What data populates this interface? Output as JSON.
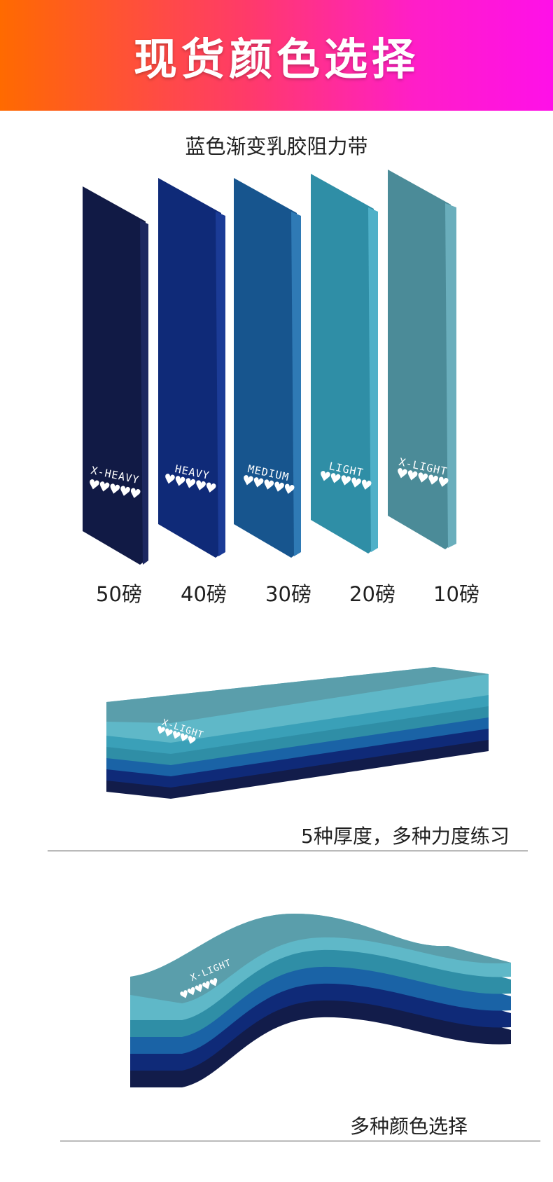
{
  "header": {
    "title": "现货颜色选择"
  },
  "product": {
    "subtitle": "蓝色渐变乳胶阻力带"
  },
  "bands": [
    {
      "label": "X-HEAVY",
      "hearts": "♥♥♥♥♥",
      "weight": "50磅",
      "color": "#111a45"
    },
    {
      "label": "HEAVY",
      "hearts": "♥♥♥♥♥",
      "weight": "40磅",
      "color": "#0f2a78"
    },
    {
      "label": "MEDIUM",
      "hearts": "♥♥♥♥♥",
      "weight": "30磅",
      "color": "#17558e"
    },
    {
      "label": "LIGHT",
      "hearts": "♥♥♥♥♥",
      "weight": "20磅",
      "color": "#2f8ea6"
    },
    {
      "label": "X-LIGHT",
      "hearts": "♥♥♥♥♥",
      "weight": "10磅",
      "color": "#4b8b98"
    }
  ],
  "stack_flat": {
    "band_label": "X-LIGHT",
    "hearts": "♥♥♥♥♥",
    "caption": "5种厚度，多种力度练习"
  },
  "stack_wave": {
    "band_label": "X-LIGHT",
    "hearts": "♥♥♥♥♥",
    "caption": "多种颜色选择"
  }
}
